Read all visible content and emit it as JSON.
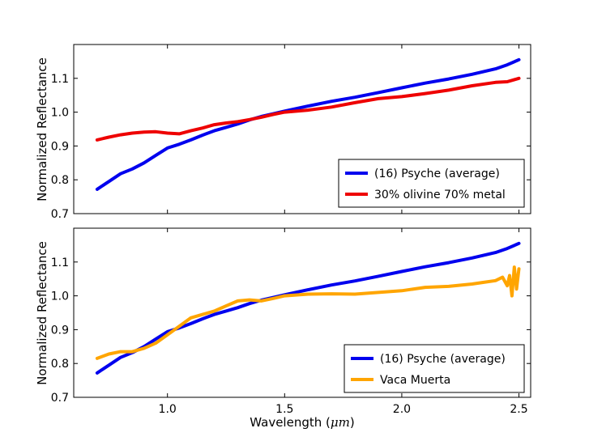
{
  "chart_data": {
    "type": "line",
    "shared_xlabel_text": "Wavelength (",
    "shared_xlabel_math": "μm",
    "shared_xlabel_close": ")",
    "xlim": [
      0.6,
      2.55
    ],
    "xticks": [
      1.0,
      1.5,
      2.0,
      2.5
    ],
    "xtick_labels": [
      "1.0",
      "1.5",
      "2.0",
      "2.5"
    ],
    "panels": [
      {
        "ylabel": "Normalized Reflectance",
        "ylim": [
          0.7,
          1.2
        ],
        "yticks": [
          0.7,
          0.8,
          0.9,
          1.0,
          1.1
        ],
        "ytick_labels": [
          "0.7",
          "0.8",
          "0.9",
          "1.0",
          "1.1"
        ],
        "legend_position": "bottom-right",
        "series": [
          {
            "name": "(16) Psyche (average)",
            "color": "#0000ee",
            "x": [
              0.7,
              0.75,
              0.8,
              0.85,
              0.9,
              0.95,
              1.0,
              1.05,
              1.1,
              1.15,
              1.2,
              1.25,
              1.3,
              1.35,
              1.4,
              1.45,
              1.5,
              1.6,
              1.7,
              1.8,
              1.9,
              2.0,
              2.1,
              2.2,
              2.3,
              2.4,
              2.45,
              2.5
            ],
            "y": [
              0.772,
              0.795,
              0.818,
              0.832,
              0.85,
              0.872,
              0.894,
              0.905,
              0.918,
              0.932,
              0.945,
              0.955,
              0.965,
              0.977,
              0.987,
              0.995,
              1.003,
              1.018,
              1.032,
              1.044,
              1.058,
              1.072,
              1.086,
              1.098,
              1.112,
              1.128,
              1.14,
              1.155
            ]
          },
          {
            "name": "30% olivine 70% metal",
            "color": "#ee0000",
            "x": [
              0.7,
              0.75,
              0.8,
              0.85,
              0.9,
              0.95,
              1.0,
              1.05,
              1.1,
              1.15,
              1.2,
              1.25,
              1.3,
              1.35,
              1.4,
              1.45,
              1.5,
              1.6,
              1.7,
              1.8,
              1.9,
              2.0,
              2.1,
              2.2,
              2.3,
              2.4,
              2.45,
              2.5
            ],
            "y": [
              0.918,
              0.926,
              0.933,
              0.938,
              0.941,
              0.942,
              0.938,
              0.936,
              0.945,
              0.953,
              0.963,
              0.968,
              0.972,
              0.978,
              0.985,
              0.993,
              1.0,
              1.006,
              1.015,
              1.028,
              1.04,
              1.046,
              1.055,
              1.065,
              1.078,
              1.088,
              1.09,
              1.1
            ]
          }
        ]
      },
      {
        "ylabel": "Normalized Reflectance",
        "ylim": [
          0.7,
          1.2
        ],
        "yticks": [
          0.7,
          0.8,
          0.9,
          1.0,
          1.1
        ],
        "ytick_labels": [
          "0.7",
          "0.8",
          "0.9",
          "1.0",
          "1.1"
        ],
        "legend_position": "bottom-right",
        "series": [
          {
            "name": "(16) Psyche (average)",
            "color": "#0000ee",
            "x": [
              0.7,
              0.75,
              0.8,
              0.85,
              0.9,
              0.95,
              1.0,
              1.05,
              1.1,
              1.15,
              1.2,
              1.25,
              1.3,
              1.35,
              1.4,
              1.45,
              1.5,
              1.6,
              1.7,
              1.8,
              1.9,
              2.0,
              2.1,
              2.2,
              2.3,
              2.4,
              2.45,
              2.5
            ],
            "y": [
              0.772,
              0.795,
              0.818,
              0.832,
              0.85,
              0.872,
              0.894,
              0.905,
              0.918,
              0.932,
              0.945,
              0.955,
              0.965,
              0.977,
              0.987,
              0.995,
              1.003,
              1.018,
              1.032,
              1.044,
              1.058,
              1.072,
              1.086,
              1.098,
              1.112,
              1.128,
              1.14,
              1.155
            ]
          },
          {
            "name": "Vaca Muerta",
            "color": "#ffa500",
            "x": [
              0.7,
              0.75,
              0.8,
              0.85,
              0.9,
              0.95,
              1.0,
              1.05,
              1.1,
              1.15,
              1.2,
              1.25,
              1.3,
              1.35,
              1.4,
              1.45,
              1.5,
              1.6,
              1.7,
              1.8,
              1.9,
              2.0,
              2.1,
              2.2,
              2.3,
              2.35,
              2.4,
              2.43,
              2.45,
              2.46,
              2.47,
              2.48,
              2.49,
              2.5
            ],
            "y": [
              0.815,
              0.828,
              0.835,
              0.835,
              0.845,
              0.86,
              0.885,
              0.91,
              0.935,
              0.945,
              0.955,
              0.97,
              0.985,
              0.988,
              0.985,
              0.992,
              1.0,
              1.005,
              1.006,
              1.005,
              1.01,
              1.015,
              1.025,
              1.028,
              1.035,
              1.04,
              1.045,
              1.055,
              1.03,
              1.06,
              1.0,
              1.085,
              1.02,
              1.08
            ]
          }
        ]
      }
    ]
  }
}
